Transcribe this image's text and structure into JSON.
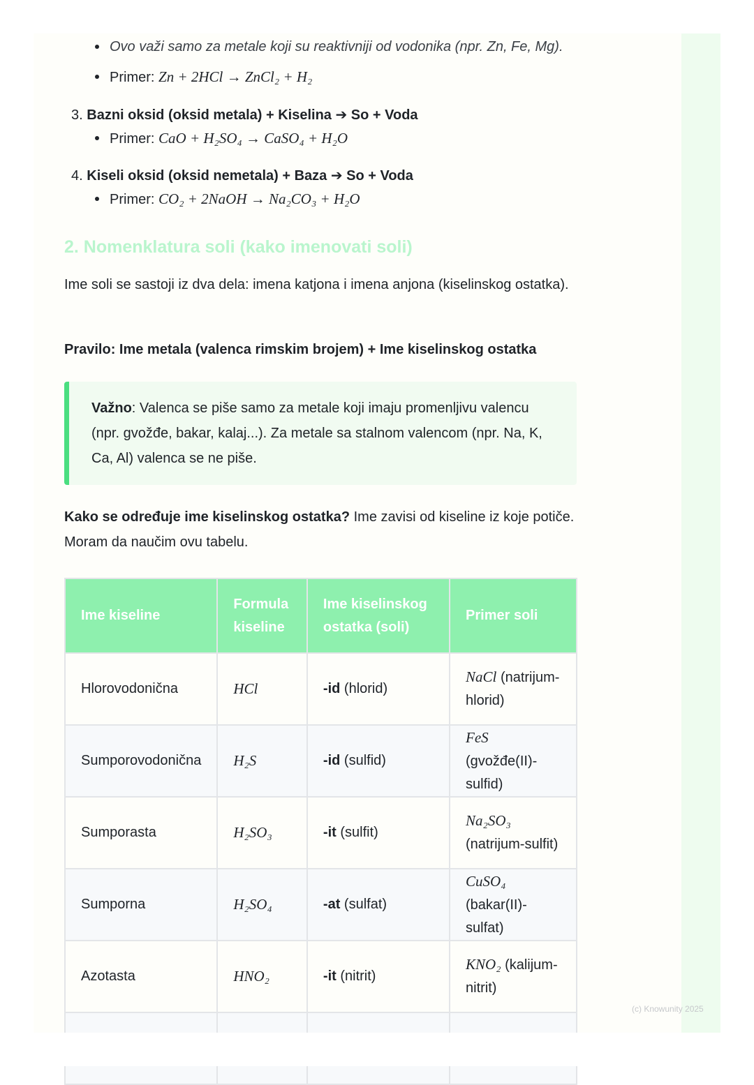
{
  "bullets_top": [
    "Ovo važi samo za metale koji su reaktivniji od vodonika (npr. Zn, Fe, Mg).",
    {
      "label": "Primer:",
      "formula": "Zn + 2HCl → ZnCl₂ + H₂"
    }
  ],
  "list": [
    {
      "number": "3.",
      "title": "Bazni oksid (oksid metala) + Kiselina ➔ So + Voda",
      "example_label": "Primer:",
      "formula": "CaO + H₂SO₄ → CaSO₄ + H₂O"
    },
    {
      "number": "4.",
      "title": "Kiseli oksid (oksid nemetala) + Baza ➔ So + Voda",
      "example_label": "Primer:",
      "formula": "CO₂ + 2NaOH → Na₂CO₃ + H₂O"
    }
  ],
  "section": {
    "heading": "2. Nomenklatura soli (kako imenovati soli)",
    "paragraph": "Ime soli se sastoji iz dva dela: imena katjona i imena anjona (kiselinskog ostatka).",
    "rule": "Pravilo: Ime metala (valenca rimskim brojem) + Ime kiselinskog ostatka",
    "note": {
      "label": "Važno",
      "text": ": Valenca se piše samo za metale koji imaju promenljivu valencu (npr. gvožđe, bakar, kalaj...). Za metale sa stalnom valencom (npr. Na, K, Ca, Al) valenca se ne piše."
    },
    "question": {
      "bold": "Kako se određuje ime kiselinskog ostatka?",
      "text": "Ime zavisi od kiseline iz koje potiče. Moram da naučim ovu tabelu."
    }
  },
  "table": {
    "headers": [
      "Ime kiseline",
      "Formula kiseline",
      "Ime kiselinskog ostatka (soli)",
      "Primer soli"
    ],
    "rows": [
      [
        "Hlorovodonična",
        "HCl",
        {
          "bold": "-id",
          "text": "(hlorid)"
        },
        {
          "formula": "NaCl",
          "text": "(natrijum-hlorid)"
        }
      ],
      [
        "Sumporovodonična",
        "H₂S",
        {
          "bold": "-id",
          "text": "(sulfid)"
        },
        {
          "formula": "FeS",
          "text": "(gvožđe(II)-sulfid)"
        }
      ],
      [
        "Sumporasta",
        "H₂SO₃",
        {
          "bold": "-it",
          "text": "(sulfit)"
        },
        {
          "formula": "Na₂SO₃",
          "text": "(natrijum-sulfit)"
        }
      ],
      [
        "Sumporna",
        "H₂SO₄",
        {
          "bold": "-at",
          "text": "(sulfat)"
        },
        {
          "formula": "CuSO₄",
          "text": "(bakar(II)-sulfat)"
        }
      ],
      [
        "Azotasta",
        "HNO₂",
        {
          "bold": "-it",
          "text": "(nitrit)"
        },
        {
          "formula": "KNO₂",
          "text": "(kalijum-nitrit)"
        }
      ]
    ]
  },
  "footer": "(c) Knowunity 2025"
}
